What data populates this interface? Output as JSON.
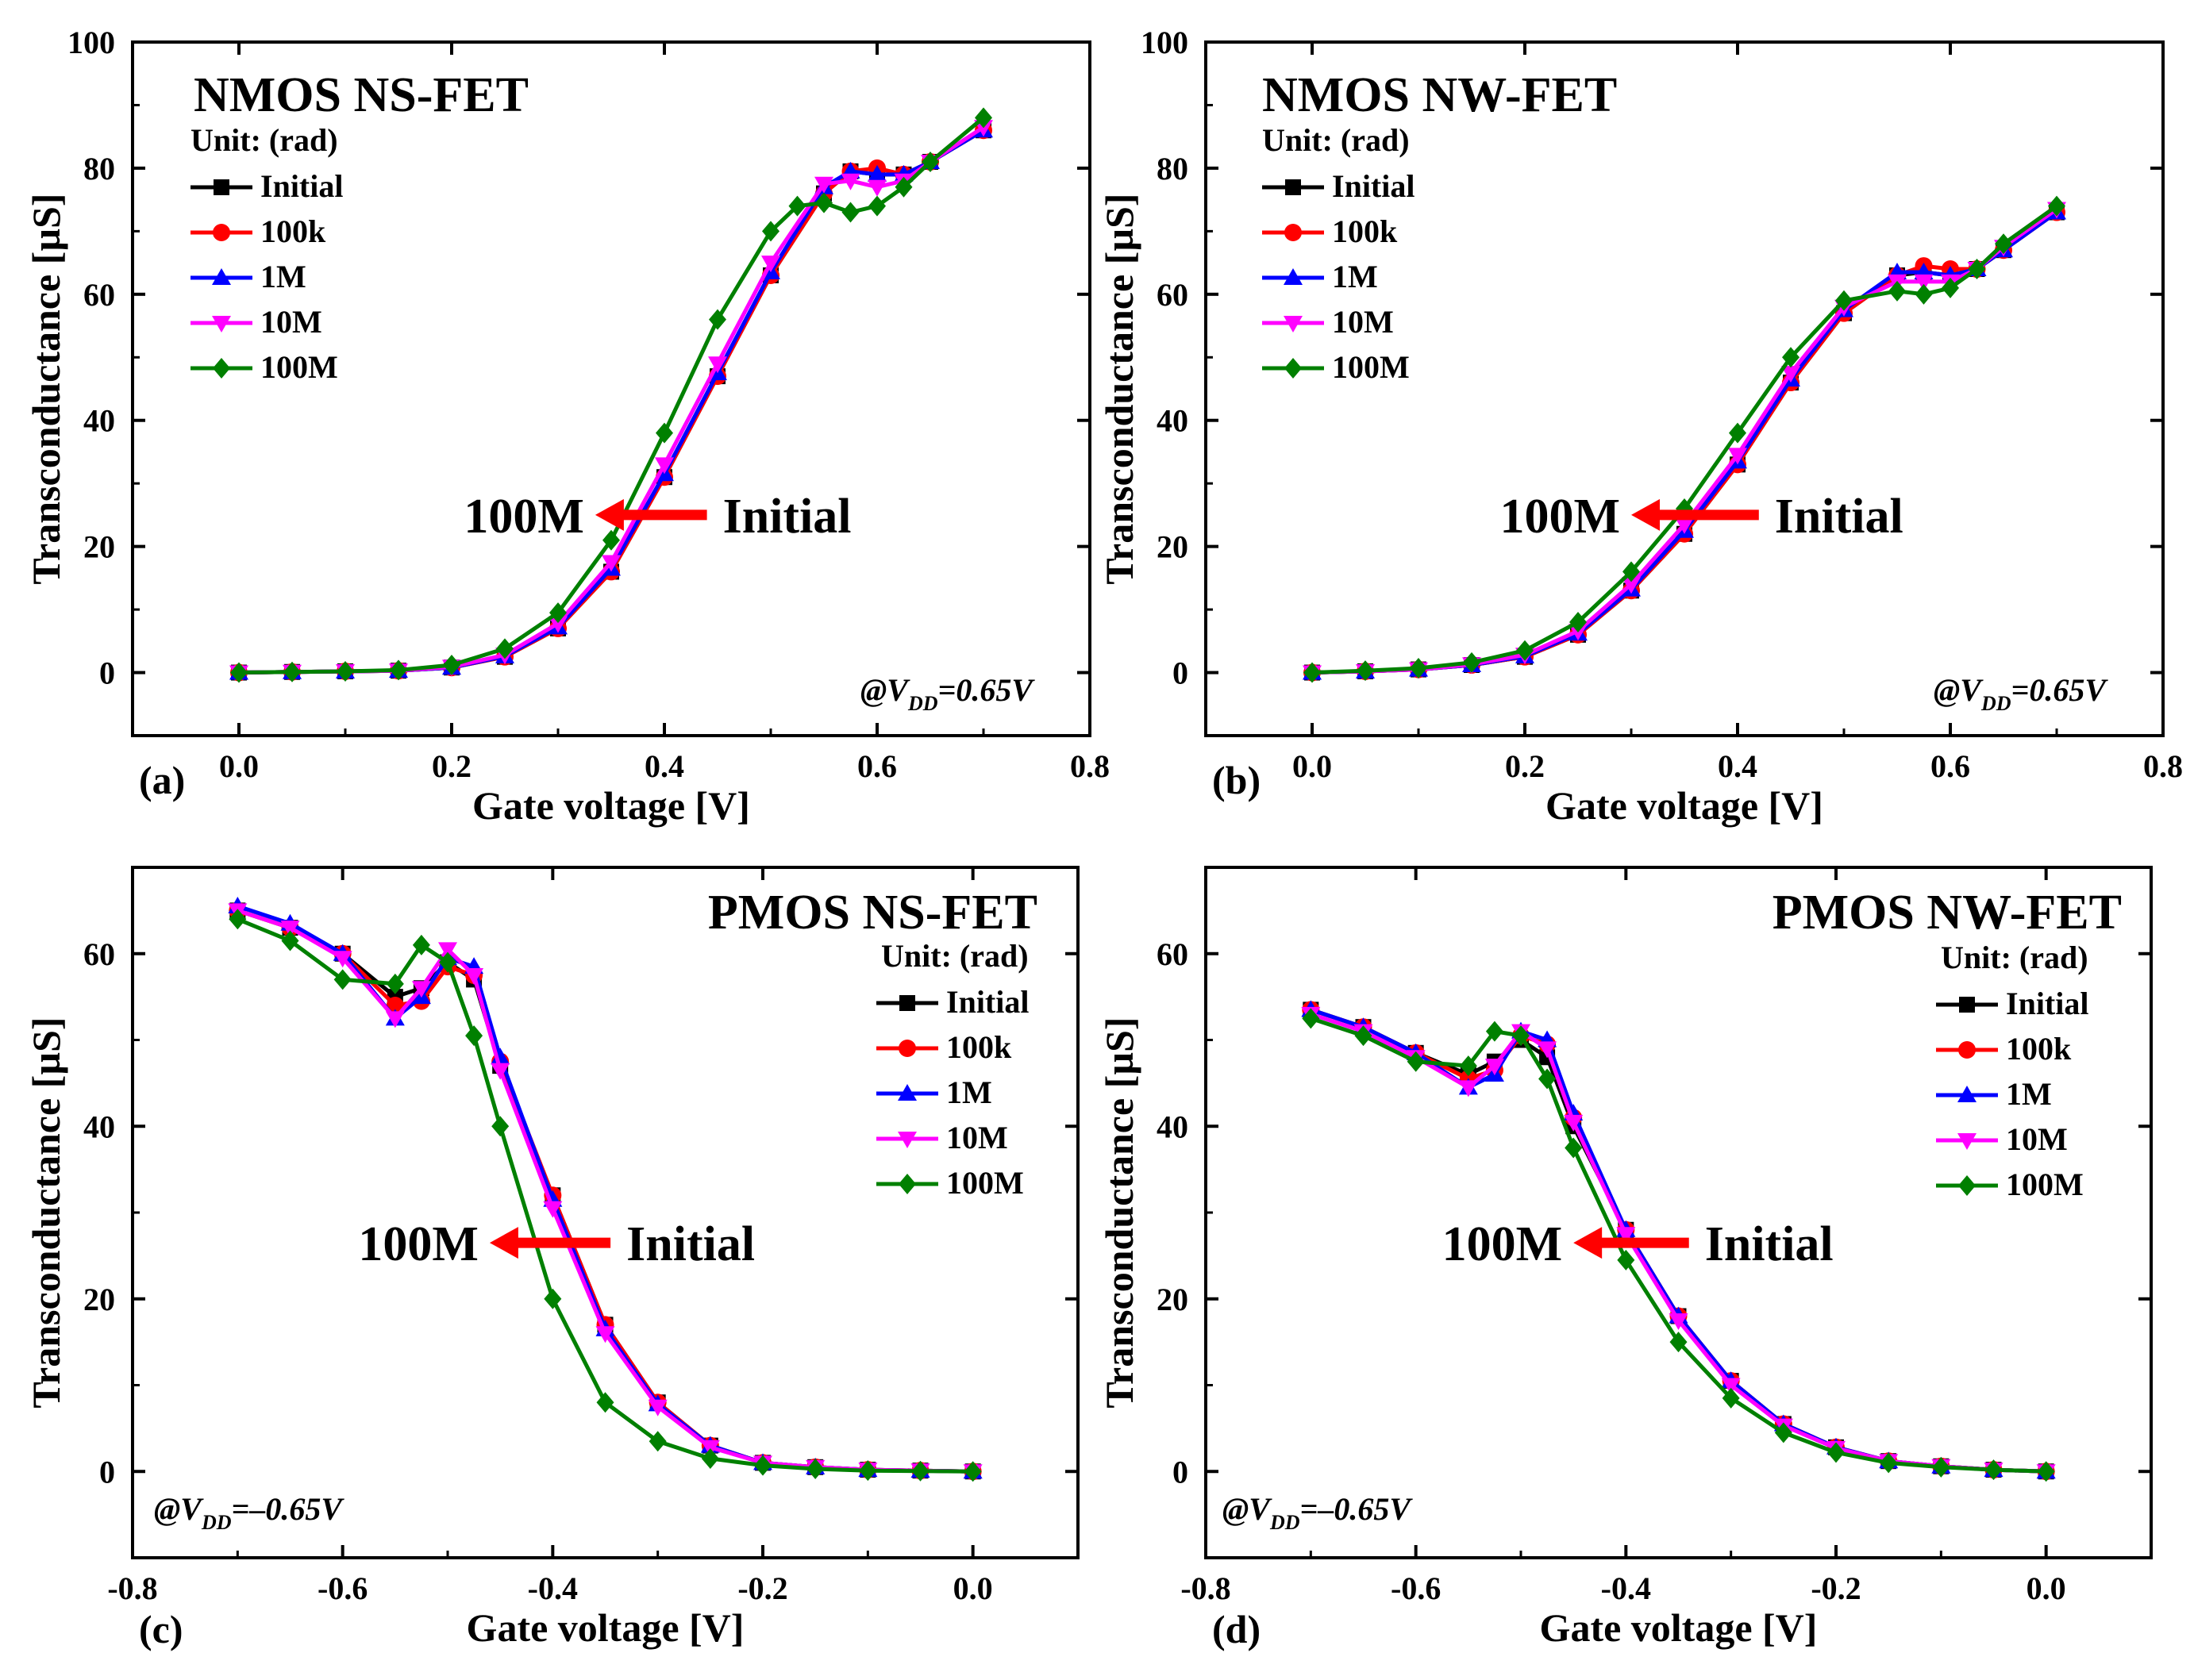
{
  "figure": {
    "series_names": [
      "Initial",
      "100k",
      "1M",
      "10M",
      "100M"
    ],
    "series_colors": [
      "#000000",
      "#ff0000",
      "#0000ff",
      "#ff00ff",
      "#008000"
    ],
    "series_markers": [
      "square",
      "circle",
      "triangle-up",
      "triangle-down",
      "diamond"
    ],
    "arrow_color": "#ff0000"
  },
  "chart_data": [
    {
      "type": "line",
      "panel_label": "(a)",
      "title": "NMOS NS-FET",
      "legend_title": "Unit: (rad)",
      "xlabel": "Gate voltage [V]",
      "ylabel": "Transconductance [µS]",
      "xlim": [
        -0.1,
        0.8
      ],
      "ylim": [
        -10,
        100
      ],
      "xticks": [
        0.0,
        0.2,
        0.4,
        0.6,
        0.8
      ],
      "xtick_labels": [
        "0.0",
        "0.2",
        "0.4",
        "0.6",
        "0.8"
      ],
      "yticks": [
        0,
        20,
        40,
        60,
        80,
        100
      ],
      "ytick_labels": [
        "0",
        "20",
        "40",
        "60",
        "80",
        "100"
      ],
      "vdd_prefix": "@V",
      "vdd_sub": "DD",
      "vdd_value": "=0.65V",
      "shift_from": "Initial",
      "shift_to": "100M",
      "arrow_from": [
        0.44,
        25
      ],
      "arrow_to": [
        0.335,
        25
      ],
      "series": [
        {
          "name": "Initial",
          "x": [
            0,
            0.05,
            0.1,
            0.15,
            0.2,
            0.25,
            0.3,
            0.35,
            0.4,
            0.45,
            0.5,
            0.55,
            0.575,
            0.6,
            0.625,
            0.65,
            0.7
          ],
          "values": [
            0,
            0.1,
            0.2,
            0.3,
            0.8,
            2.5,
            7,
            16,
            31,
            47,
            63,
            76,
            79.5,
            79,
            79,
            81,
            86
          ]
        },
        {
          "name": "100k",
          "x": [
            0,
            0.05,
            0.1,
            0.15,
            0.2,
            0.25,
            0.3,
            0.35,
            0.4,
            0.45,
            0.5,
            0.55,
            0.575,
            0.6,
            0.625,
            0.65,
            0.7
          ],
          "values": [
            0,
            0.1,
            0.2,
            0.3,
            0.8,
            2.5,
            7,
            16,
            31,
            47,
            63,
            76,
            79.5,
            80,
            79,
            81,
            86
          ]
        },
        {
          "name": "1M",
          "x": [
            0,
            0.05,
            0.1,
            0.15,
            0.2,
            0.25,
            0.3,
            0.35,
            0.4,
            0.45,
            0.5,
            0.55,
            0.575,
            0.6,
            0.625,
            0.65,
            0.7
          ],
          "values": [
            0,
            0.1,
            0.2,
            0.3,
            0.8,
            2.6,
            7.2,
            16.5,
            31.5,
            47.5,
            63.5,
            77,
            79.5,
            79,
            79,
            81,
            86
          ]
        },
        {
          "name": "10M",
          "x": [
            0,
            0.05,
            0.1,
            0.15,
            0.2,
            0.25,
            0.3,
            0.35,
            0.4,
            0.45,
            0.5,
            0.55,
            0.575,
            0.6,
            0.625,
            0.65,
            0.7
          ],
          "values": [
            0,
            0.1,
            0.2,
            0.3,
            0.9,
            2.8,
            7.8,
            17.5,
            33,
            49,
            65,
            77.5,
            78,
            77,
            78,
            81,
            86.5
          ]
        },
        {
          "name": "100M",
          "x": [
            0,
            0.05,
            0.1,
            0.15,
            0.2,
            0.25,
            0.3,
            0.35,
            0.4,
            0.45,
            0.5,
            0.525,
            0.55,
            0.575,
            0.6,
            0.625,
            0.65,
            0.7
          ],
          "values": [
            0,
            0.1,
            0.2,
            0.4,
            1.2,
            3.8,
            9.5,
            21,
            38,
            56,
            70,
            74,
            74.5,
            73,
            74,
            77,
            81,
            88
          ]
        }
      ]
    },
    {
      "type": "line",
      "panel_label": "(b)",
      "title": "NMOS NW-FET",
      "legend_title": "Unit: (rad)",
      "xlabel": "Gate voltage [V]",
      "ylabel": "Transconductance [µS]",
      "xlim": [
        -0.1,
        0.8
      ],
      "ylim": [
        -10,
        100
      ],
      "xticks": [
        0.0,
        0.2,
        0.4,
        0.6,
        0.8
      ],
      "xtick_labels": [
        "0.0",
        "0.2",
        "0.4",
        "0.6",
        "0.8"
      ],
      "yticks": [
        0,
        20,
        40,
        60,
        80,
        100
      ],
      "ytick_labels": [
        "0",
        "20",
        "40",
        "60",
        "80",
        "100"
      ],
      "vdd_prefix": "@V",
      "vdd_sub": "DD",
      "vdd_value": "=0.65V",
      "shift_from": "Initial",
      "shift_to": "100M",
      "arrow_from": [
        0.42,
        25
      ],
      "arrow_to": [
        0.3,
        25
      ],
      "series": [
        {
          "name": "Initial",
          "x": [
            0,
            0.05,
            0.1,
            0.15,
            0.2,
            0.25,
            0.3,
            0.35,
            0.4,
            0.45,
            0.5,
            0.55,
            0.575,
            0.6,
            0.625,
            0.65,
            0.7
          ],
          "values": [
            0,
            0.2,
            0.5,
            1.2,
            2.5,
            6,
            13,
            22,
            33,
            46,
            57,
            63,
            63.5,
            63,
            64,
            67,
            73
          ]
        },
        {
          "name": "100k",
          "x": [
            0,
            0.05,
            0.1,
            0.15,
            0.2,
            0.25,
            0.3,
            0.35,
            0.4,
            0.45,
            0.5,
            0.55,
            0.575,
            0.6,
            0.625,
            0.65,
            0.7
          ],
          "values": [
            0,
            0.2,
            0.5,
            1.2,
            2.5,
            6,
            13,
            22,
            33,
            46,
            57,
            63,
            64.5,
            64,
            64,
            67,
            73
          ]
        },
        {
          "name": "1M",
          "x": [
            0,
            0.05,
            0.1,
            0.15,
            0.2,
            0.25,
            0.3,
            0.35,
            0.4,
            0.45,
            0.5,
            0.55,
            0.575,
            0.6,
            0.625,
            0.65,
            0.7
          ],
          "values": [
            0,
            0.2,
            0.5,
            1.2,
            2.6,
            6.2,
            13.2,
            22.5,
            33.5,
            46.5,
            57.5,
            63.5,
            63.5,
            63,
            64,
            67,
            73
          ]
        },
        {
          "name": "10M",
          "x": [
            0,
            0.05,
            0.1,
            0.15,
            0.2,
            0.25,
            0.3,
            0.35,
            0.4,
            0.45,
            0.5,
            0.55,
            0.575,
            0.6,
            0.625,
            0.65,
            0.7
          ],
          "values": [
            0,
            0.2,
            0.5,
            1.3,
            2.8,
            6.6,
            14,
            23.5,
            34.5,
            47.5,
            58,
            62,
            62,
            62,
            64,
            67.5,
            73.5
          ]
        },
        {
          "name": "100M",
          "x": [
            0,
            0.05,
            0.1,
            0.15,
            0.2,
            0.25,
            0.3,
            0.35,
            0.4,
            0.45,
            0.5,
            0.55,
            0.575,
            0.6,
            0.625,
            0.65,
            0.7
          ],
          "values": [
            0,
            0.3,
            0.7,
            1.6,
            3.5,
            8,
            16,
            26,
            38,
            50,
            59,
            60.5,
            60,
            61,
            64,
            68,
            74
          ]
        }
      ]
    },
    {
      "type": "line",
      "panel_label": "(c)",
      "title": "PMOS NS-FET",
      "legend_title": "Unit: (rad)",
      "xlabel": "Gate voltage [V]",
      "ylabel": "Transconductance [µS]",
      "xlim": [
        -0.8,
        0.1
      ],
      "ylim": [
        -10,
        70
      ],
      "xticks": [
        -0.8,
        -0.6,
        -0.4,
        -0.2,
        0.0
      ],
      "xtick_labels": [
        "-0.8",
        "-0.6",
        "-0.4",
        "-0.2",
        "0.0"
      ],
      "yticks": [
        0,
        20,
        40,
        60
      ],
      "ytick_labels": [
        "0",
        "20",
        "40",
        "60"
      ],
      "vdd_prefix": "@V",
      "vdd_sub": "DD",
      "vdd_value": "=–0.65V",
      "shift_from": "Initial",
      "shift_to": "100M",
      "arrow_from": [
        -0.345,
        26.5
      ],
      "arrow_to": [
        -0.46,
        26.5
      ],
      "series": [
        {
          "name": "Initial",
          "x": [
            -0.7,
            -0.65,
            -0.6,
            -0.55,
            -0.525,
            -0.5,
            -0.475,
            -0.45,
            -0.4,
            -0.35,
            -0.3,
            -0.25,
            -0.2,
            -0.15,
            -0.1,
            -0.05,
            0
          ],
          "values": [
            65,
            63,
            60,
            55,
            56,
            59,
            57,
            47,
            32,
            17,
            8,
            3,
            1,
            0.5,
            0.2,
            0.1,
            0
          ]
        },
        {
          "name": "100k",
          "x": [
            -0.7,
            -0.65,
            -0.6,
            -0.55,
            -0.525,
            -0.5,
            -0.475,
            -0.45,
            -0.4,
            -0.35,
            -0.3,
            -0.25,
            -0.2,
            -0.15,
            -0.1,
            -0.05,
            0
          ],
          "values": [
            65,
            63,
            60,
            54,
            54.5,
            58.5,
            57.5,
            47.5,
            32,
            17,
            8,
            3,
            1,
            0.5,
            0.2,
            0.1,
            0
          ]
        },
        {
          "name": "1M",
          "x": [
            -0.7,
            -0.65,
            -0.6,
            -0.55,
            -0.525,
            -0.5,
            -0.475,
            -0.45,
            -0.4,
            -0.35,
            -0.3,
            -0.25,
            -0.2,
            -0.15,
            -0.1,
            -0.05,
            0
          ],
          "values": [
            65.5,
            63.5,
            60,
            52.5,
            55,
            59.5,
            58.5,
            48,
            31.5,
            16.5,
            7.8,
            3,
            1,
            0.5,
            0.2,
            0.1,
            0
          ]
        },
        {
          "name": "10M",
          "x": [
            -0.7,
            -0.65,
            -0.6,
            -0.55,
            -0.525,
            -0.5,
            -0.475,
            -0.45,
            -0.4,
            -0.35,
            -0.3,
            -0.25,
            -0.2,
            -0.15,
            -0.1,
            -0.05,
            0
          ],
          "values": [
            65,
            63,
            59.5,
            52.5,
            56,
            60.5,
            57.5,
            46.5,
            30.5,
            16,
            7.5,
            2.8,
            1,
            0.5,
            0.2,
            0.1,
            0
          ]
        },
        {
          "name": "100M",
          "x": [
            -0.7,
            -0.65,
            -0.6,
            -0.55,
            -0.525,
            -0.5,
            -0.475,
            -0.45,
            -0.4,
            -0.35,
            -0.3,
            -0.25,
            -0.2,
            -0.15,
            -0.1,
            -0.05,
            0
          ],
          "values": [
            64,
            61.5,
            57,
            56.5,
            61,
            59,
            50.5,
            40,
            20,
            8,
            3.5,
            1.5,
            0.7,
            0.3,
            0.1,
            0.05,
            0
          ]
        }
      ]
    },
    {
      "type": "line",
      "panel_label": "(d)",
      "title": "PMOS NW-FET",
      "legend_title": "Unit: (rad)",
      "xlabel": "Gate voltage [V]",
      "ylabel": "Transconductance [µS]",
      "xlim": [
        -0.8,
        0.1
      ],
      "ylim": [
        -10,
        70
      ],
      "xticks": [
        -0.8,
        -0.6,
        -0.4,
        -0.2,
        0.0
      ],
      "xtick_labels": [
        "-0.8",
        "-0.6",
        "-0.4",
        "-0.2",
        "0.0"
      ],
      "yticks": [
        0,
        20,
        40,
        60
      ],
      "ytick_labels": [
        "0",
        "20",
        "40",
        "60"
      ],
      "vdd_prefix": "@V",
      "vdd_sub": "DD",
      "vdd_value": "=–0.65V",
      "shift_from": "Initial",
      "shift_to": "100M",
      "arrow_from": [
        -0.34,
        26.5
      ],
      "arrow_to": [
        -0.45,
        26.5
      ],
      "series": [
        {
          "name": "Initial",
          "x": [
            -0.7,
            -0.65,
            -0.6,
            -0.55,
            -0.525,
            -0.5,
            -0.475,
            -0.45,
            -0.4,
            -0.35,
            -0.3,
            -0.25,
            -0.2,
            -0.15,
            -0.1,
            -0.05,
            0
          ],
          "values": [
            53.5,
            51.5,
            48.5,
            46,
            47.5,
            50,
            48,
            40,
            28,
            18,
            10.5,
            5.5,
            2.8,
            1.2,
            0.6,
            0.2,
            0
          ]
        },
        {
          "name": "100k",
          "x": [
            -0.7,
            -0.65,
            -0.6,
            -0.55,
            -0.525,
            -0.5,
            -0.475,
            -0.45,
            -0.4,
            -0.35,
            -0.3,
            -0.25,
            -0.2,
            -0.15,
            -0.1,
            -0.05,
            0
          ],
          "values": [
            53.5,
            51.5,
            48.5,
            45.5,
            46.5,
            50.5,
            49.5,
            41,
            28,
            18,
            10.5,
            5.5,
            2.8,
            1.2,
            0.6,
            0.2,
            0
          ]
        },
        {
          "name": "1M",
          "x": [
            -0.7,
            -0.65,
            -0.6,
            -0.55,
            -0.525,
            -0.5,
            -0.475,
            -0.45,
            -0.4,
            -0.35,
            -0.3,
            -0.25,
            -0.2,
            -0.15,
            -0.1,
            -0.05,
            0
          ],
          "values": [
            53.5,
            51.5,
            48.5,
            44.5,
            46,
            51,
            50,
            41.5,
            28,
            18,
            10.5,
            5.5,
            2.8,
            1.2,
            0.6,
            0.2,
            0
          ]
        },
        {
          "name": "10M",
          "x": [
            -0.7,
            -0.65,
            -0.6,
            -0.55,
            -0.525,
            -0.5,
            -0.475,
            -0.45,
            -0.4,
            -0.35,
            -0.3,
            -0.25,
            -0.2,
            -0.15,
            -0.1,
            -0.05,
            0
          ],
          "values": [
            53,
            51,
            48,
            44.5,
            47,
            51,
            49,
            40.5,
            27.5,
            17.5,
            10,
            5.3,
            2.7,
            1.2,
            0.6,
            0.2,
            0
          ]
        },
        {
          "name": "100M",
          "x": [
            -0.7,
            -0.65,
            -0.6,
            -0.55,
            -0.525,
            -0.5,
            -0.475,
            -0.45,
            -0.4,
            -0.35,
            -0.3,
            -0.25,
            -0.2,
            -0.15,
            -0.1,
            -0.05,
            0
          ],
          "values": [
            52.5,
            50.5,
            47.5,
            47,
            51,
            50.5,
            45.5,
            37.5,
            24.5,
            15,
            8.5,
            4.5,
            2.2,
            1,
            0.5,
            0.2,
            0
          ]
        }
      ]
    }
  ]
}
